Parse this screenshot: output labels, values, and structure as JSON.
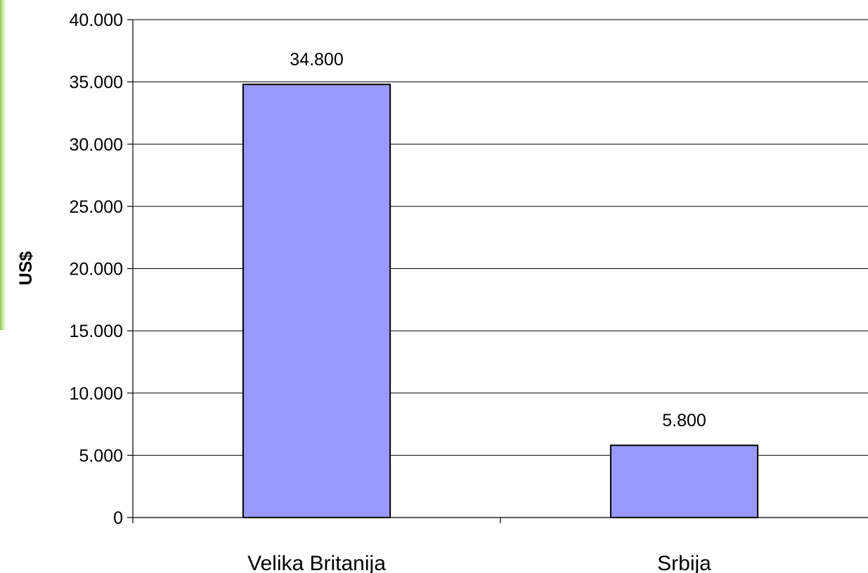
{
  "chart_data": {
    "type": "bar",
    "categories": [
      "Velika Britanija",
      "Srbija"
    ],
    "values": [
      34800,
      5800
    ],
    "data_labels": [
      "34.800",
      "5.800"
    ],
    "ylabel": "US$",
    "ylim": [
      0,
      40000
    ],
    "yticks": [
      0,
      5000,
      10000,
      15000,
      20000,
      25000,
      30000,
      35000,
      40000
    ],
    "ytick_labels": [
      "0",
      "5.000",
      "10.000",
      "15.000",
      "20.000",
      "25.000",
      "30.000",
      "35.000",
      "40.000"
    ],
    "grid": true,
    "legend": "none",
    "bar_color": "#9999ff",
    "background_accent": "#8dc63f"
  }
}
